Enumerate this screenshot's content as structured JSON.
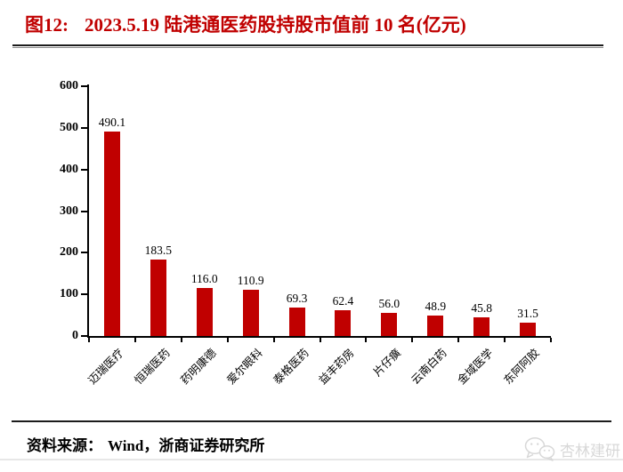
{
  "figure": {
    "label": "图12:",
    "title": "2023.5.19 陆港通医药股持股市值前 10 名(亿元)"
  },
  "chart_data": {
    "type": "bar",
    "title": "2023.5.19 陆港通医药股持股市值前 10 名(亿元)",
    "categories": [
      "迈瑞医疗",
      "恒瑞医药",
      "药明康德",
      "爱尔眼科",
      "泰格医药",
      "益丰药房",
      "片仔癀",
      "云南白药",
      "金域医学",
      "东阿阿胶"
    ],
    "values": [
      490.1,
      183.5,
      116.0,
      110.9,
      69.3,
      62.4,
      56.0,
      48.9,
      45.8,
      31.5
    ],
    "value_labels": [
      "490.1",
      "183.5",
      "116.0",
      "110.9",
      "69.3",
      "62.4",
      "56.0",
      "48.9",
      "45.8",
      "31.5"
    ],
    "xlabel": "",
    "ylabel": "",
    "ylim": [
      0,
      600
    ],
    "yticks": [
      0,
      100,
      200,
      300,
      400,
      500,
      600
    ],
    "grid": false,
    "legend": "none",
    "bar_color": "#c00000"
  },
  "footer": {
    "source_label": "资料来源：",
    "source_text": "Wind，浙商证券研究所"
  },
  "watermark": {
    "icon": "wechat-icon",
    "text": "杏林建研",
    "color": "#d8d8d8"
  },
  "colors": {
    "title": "#c00000",
    "bar": "#c00000",
    "axis": "#000000",
    "separator": "#1c1c1c"
  }
}
